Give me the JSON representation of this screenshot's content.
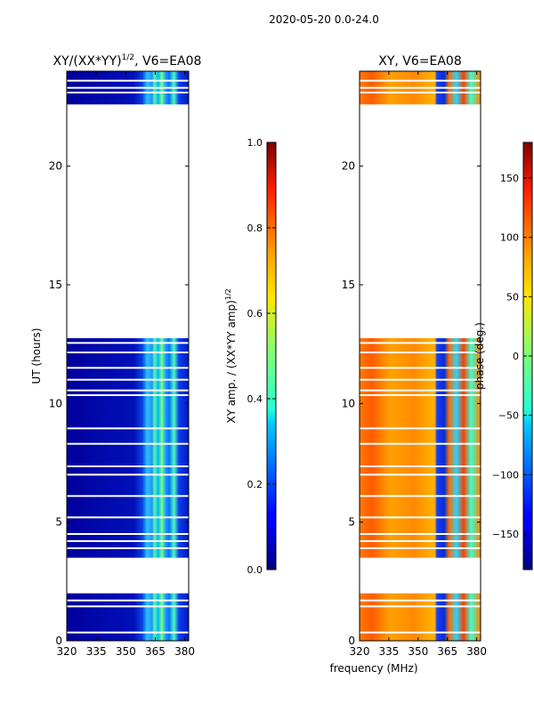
{
  "figure": {
    "suptitle": "2020-05-20 0.0-24.0",
    "shared_xlabel": "frequency (MHz)"
  },
  "chart_data": [
    {
      "type": "heatmap",
      "title_main": "XY/(XX*YY)",
      "title_exp": "1/2",
      "title_suffix": ", V6=EA08",
      "ylabel": "UT (hours)",
      "xlim": [
        320,
        382
      ],
      "ylim": [
        0,
        24
      ],
      "xticks": [
        320,
        335,
        350,
        365,
        380
      ],
      "yticks": [
        0,
        5,
        10,
        15,
        20
      ],
      "data_time_ranges_hours": [
        [
          0.0,
          2.0
        ],
        [
          3.5,
          12.75
        ],
        [
          22.6,
          24.0
        ]
      ],
      "gap_lines_hours": [
        0.35,
        1.45,
        1.7,
        3.9,
        4.2,
        4.5,
        5.2,
        6.1,
        7.0,
        7.35,
        8.3,
        8.95,
        10.35,
        10.55,
        11.0,
        11.5,
        12.15,
        12.55,
        23.1,
        23.3,
        23.6
      ],
      "colorbar": {
        "label_main": "XY amp. / (XX*YY amp)",
        "label_exp": "1/2",
        "range": [
          0.0,
          1.0
        ],
        "ticks": [
          "0.0",
          "0.2",
          "0.4",
          "0.6",
          "0.8",
          "1.0"
        ],
        "colormap": "jet"
      }
    },
    {
      "type": "heatmap",
      "title": "XY, V6=EA08",
      "xlim": [
        320,
        382
      ],
      "ylim": [
        0,
        24
      ],
      "xticks": [
        320,
        335,
        350,
        365,
        380
      ],
      "yticks": [
        0,
        5,
        10,
        15,
        20
      ],
      "data_time_ranges_hours": [
        [
          0.0,
          2.0
        ],
        [
          3.5,
          12.75
        ],
        [
          22.6,
          24.0
        ]
      ],
      "gap_lines_hours": [
        0.35,
        1.45,
        1.7,
        3.9,
        4.2,
        4.5,
        5.2,
        6.1,
        7.0,
        7.35,
        8.3,
        8.95,
        10.35,
        10.55,
        11.0,
        11.5,
        12.15,
        12.55,
        23.1,
        23.3,
        23.6
      ],
      "colorbar": {
        "label": "phase (deg.)",
        "range": [
          -180,
          180
        ],
        "ticks": [
          "−150",
          "−100",
          "−50",
          "0",
          "50",
          "100",
          "150"
        ],
        "tick_values": [
          -150,
          -100,
          -50,
          0,
          50,
          100,
          150
        ],
        "colormap": "jet"
      }
    }
  ]
}
